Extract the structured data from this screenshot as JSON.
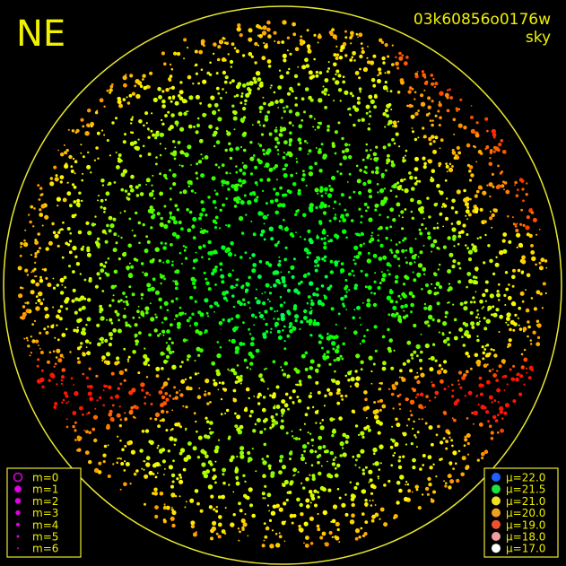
{
  "header": {
    "direction": "NE",
    "frame_id": "03k60856o0176w",
    "frame_type": "sky"
  },
  "magnitude_legend": {
    "items": [
      {
        "label": "m=0",
        "color": "#e000e0"
      },
      {
        "label": "m=1",
        "color": "#e000e0"
      },
      {
        "label": "m=2",
        "color": "#e000e0"
      },
      {
        "label": "m=3",
        "color": "#e000e0"
      },
      {
        "label": "m=4",
        "color": "#e000e0"
      },
      {
        "label": "m=5",
        "color": "#e000e0"
      },
      {
        "label": "m=6",
        "color": "#e000e0"
      }
    ]
  },
  "brightness_legend": {
    "items": [
      {
        "label": "μ=22.0",
        "color": "#2060ff"
      },
      {
        "label": "μ=21.5",
        "color": "#20e040"
      },
      {
        "label": "μ=21.0",
        "color": "#f0e020"
      },
      {
        "label": "μ=20.0",
        "color": "#f0a020"
      },
      {
        "label": "μ=19.0",
        "color": "#f05030"
      },
      {
        "label": "μ=18.0",
        "color": "#f0a0a0"
      },
      {
        "label": "μ=17.0",
        "color": "#ffffff"
      }
    ]
  }
}
